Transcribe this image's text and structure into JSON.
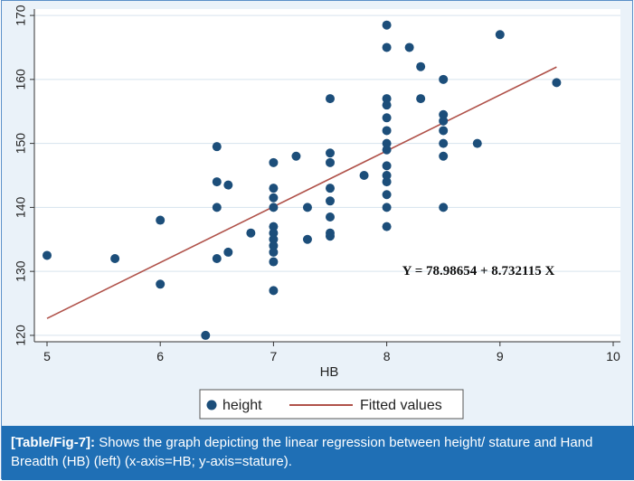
{
  "chart_data": {
    "type": "scatter",
    "title": "",
    "xlabel": "HB",
    "ylabel": "",
    "xlim": [
      5,
      10
    ],
    "ylim": [
      119,
      171
    ],
    "x_ticks": [
      "5",
      "6",
      "7",
      "8",
      "9",
      "10"
    ],
    "y_ticks": [
      "120",
      "130",
      "140",
      "150",
      "160",
      "170"
    ],
    "grid": true,
    "legend_position": "bottom",
    "colors": {
      "points": "#1c4e7a",
      "line": "#b0524a",
      "grid": "#d6e3ee",
      "plot_bg": "#ffffff"
    },
    "series": [
      {
        "name": "height",
        "kind": "scatter",
        "points": [
          [
            5.0,
            132.5
          ],
          [
            5.6,
            132.0
          ],
          [
            6.0,
            138.0
          ],
          [
            6.0,
            128.0
          ],
          [
            6.4,
            120.0
          ],
          [
            6.5,
            149.5
          ],
          [
            6.5,
            144.0
          ],
          [
            6.5,
            140.0
          ],
          [
            6.5,
            132.0
          ],
          [
            6.6,
            143.5
          ],
          [
            6.6,
            133.0
          ],
          [
            6.8,
            136.0
          ],
          [
            7.0,
            147.0
          ],
          [
            7.0,
            143.0
          ],
          [
            7.0,
            141.5
          ],
          [
            7.0,
            140.0
          ],
          [
            7.0,
            137.0
          ],
          [
            7.0,
            136.0
          ],
          [
            7.0,
            135.0
          ],
          [
            7.0,
            134.0
          ],
          [
            7.0,
            133.0
          ],
          [
            7.0,
            131.5
          ],
          [
            7.0,
            127.0
          ],
          [
            7.2,
            148.0
          ],
          [
            7.3,
            140.0
          ],
          [
            7.3,
            135.0
          ],
          [
            7.5,
            157.0
          ],
          [
            7.5,
            148.5
          ],
          [
            7.5,
            147.0
          ],
          [
            7.5,
            143.0
          ],
          [
            7.5,
            141.0
          ],
          [
            7.5,
            138.5
          ],
          [
            7.5,
            136.0
          ],
          [
            7.5,
            135.5
          ],
          [
            7.8,
            145.0
          ],
          [
            8.0,
            168.5
          ],
          [
            8.0,
            165.0
          ],
          [
            8.0,
            157.0
          ],
          [
            8.0,
            156.0
          ],
          [
            8.0,
            154.0
          ],
          [
            8.0,
            152.0
          ],
          [
            8.0,
            150.0
          ],
          [
            8.0,
            149.0
          ],
          [
            8.0,
            146.5
          ],
          [
            8.0,
            145.0
          ],
          [
            8.0,
            144.0
          ],
          [
            8.0,
            142.0
          ],
          [
            8.0,
            140.0
          ],
          [
            8.0,
            137.0
          ],
          [
            8.2,
            165.0
          ],
          [
            8.3,
            162.0
          ],
          [
            8.3,
            157.0
          ],
          [
            8.5,
            160.0
          ],
          [
            8.5,
            154.5
          ],
          [
            8.5,
            153.5
          ],
          [
            8.5,
            152.0
          ],
          [
            8.5,
            150.0
          ],
          [
            8.5,
            148.0
          ],
          [
            8.5,
            140.0
          ],
          [
            8.8,
            150.0
          ],
          [
            9.0,
            167.0
          ],
          [
            9.5,
            159.5
          ]
        ]
      },
      {
        "name": "Fitted values",
        "kind": "line",
        "points": [
          [
            5.0,
            122.65
          ],
          [
            9.5,
            161.94
          ]
        ]
      }
    ],
    "annotation": "Y = 78.98654 + 8.732115 X"
  },
  "caption": {
    "tag": "[Table/Fig-7]:",
    "text": " Shows the graph depicting the linear regression between height/ stature and Hand Breadth (HB) (left) (x-axis=HB; y-axis=stature)."
  }
}
